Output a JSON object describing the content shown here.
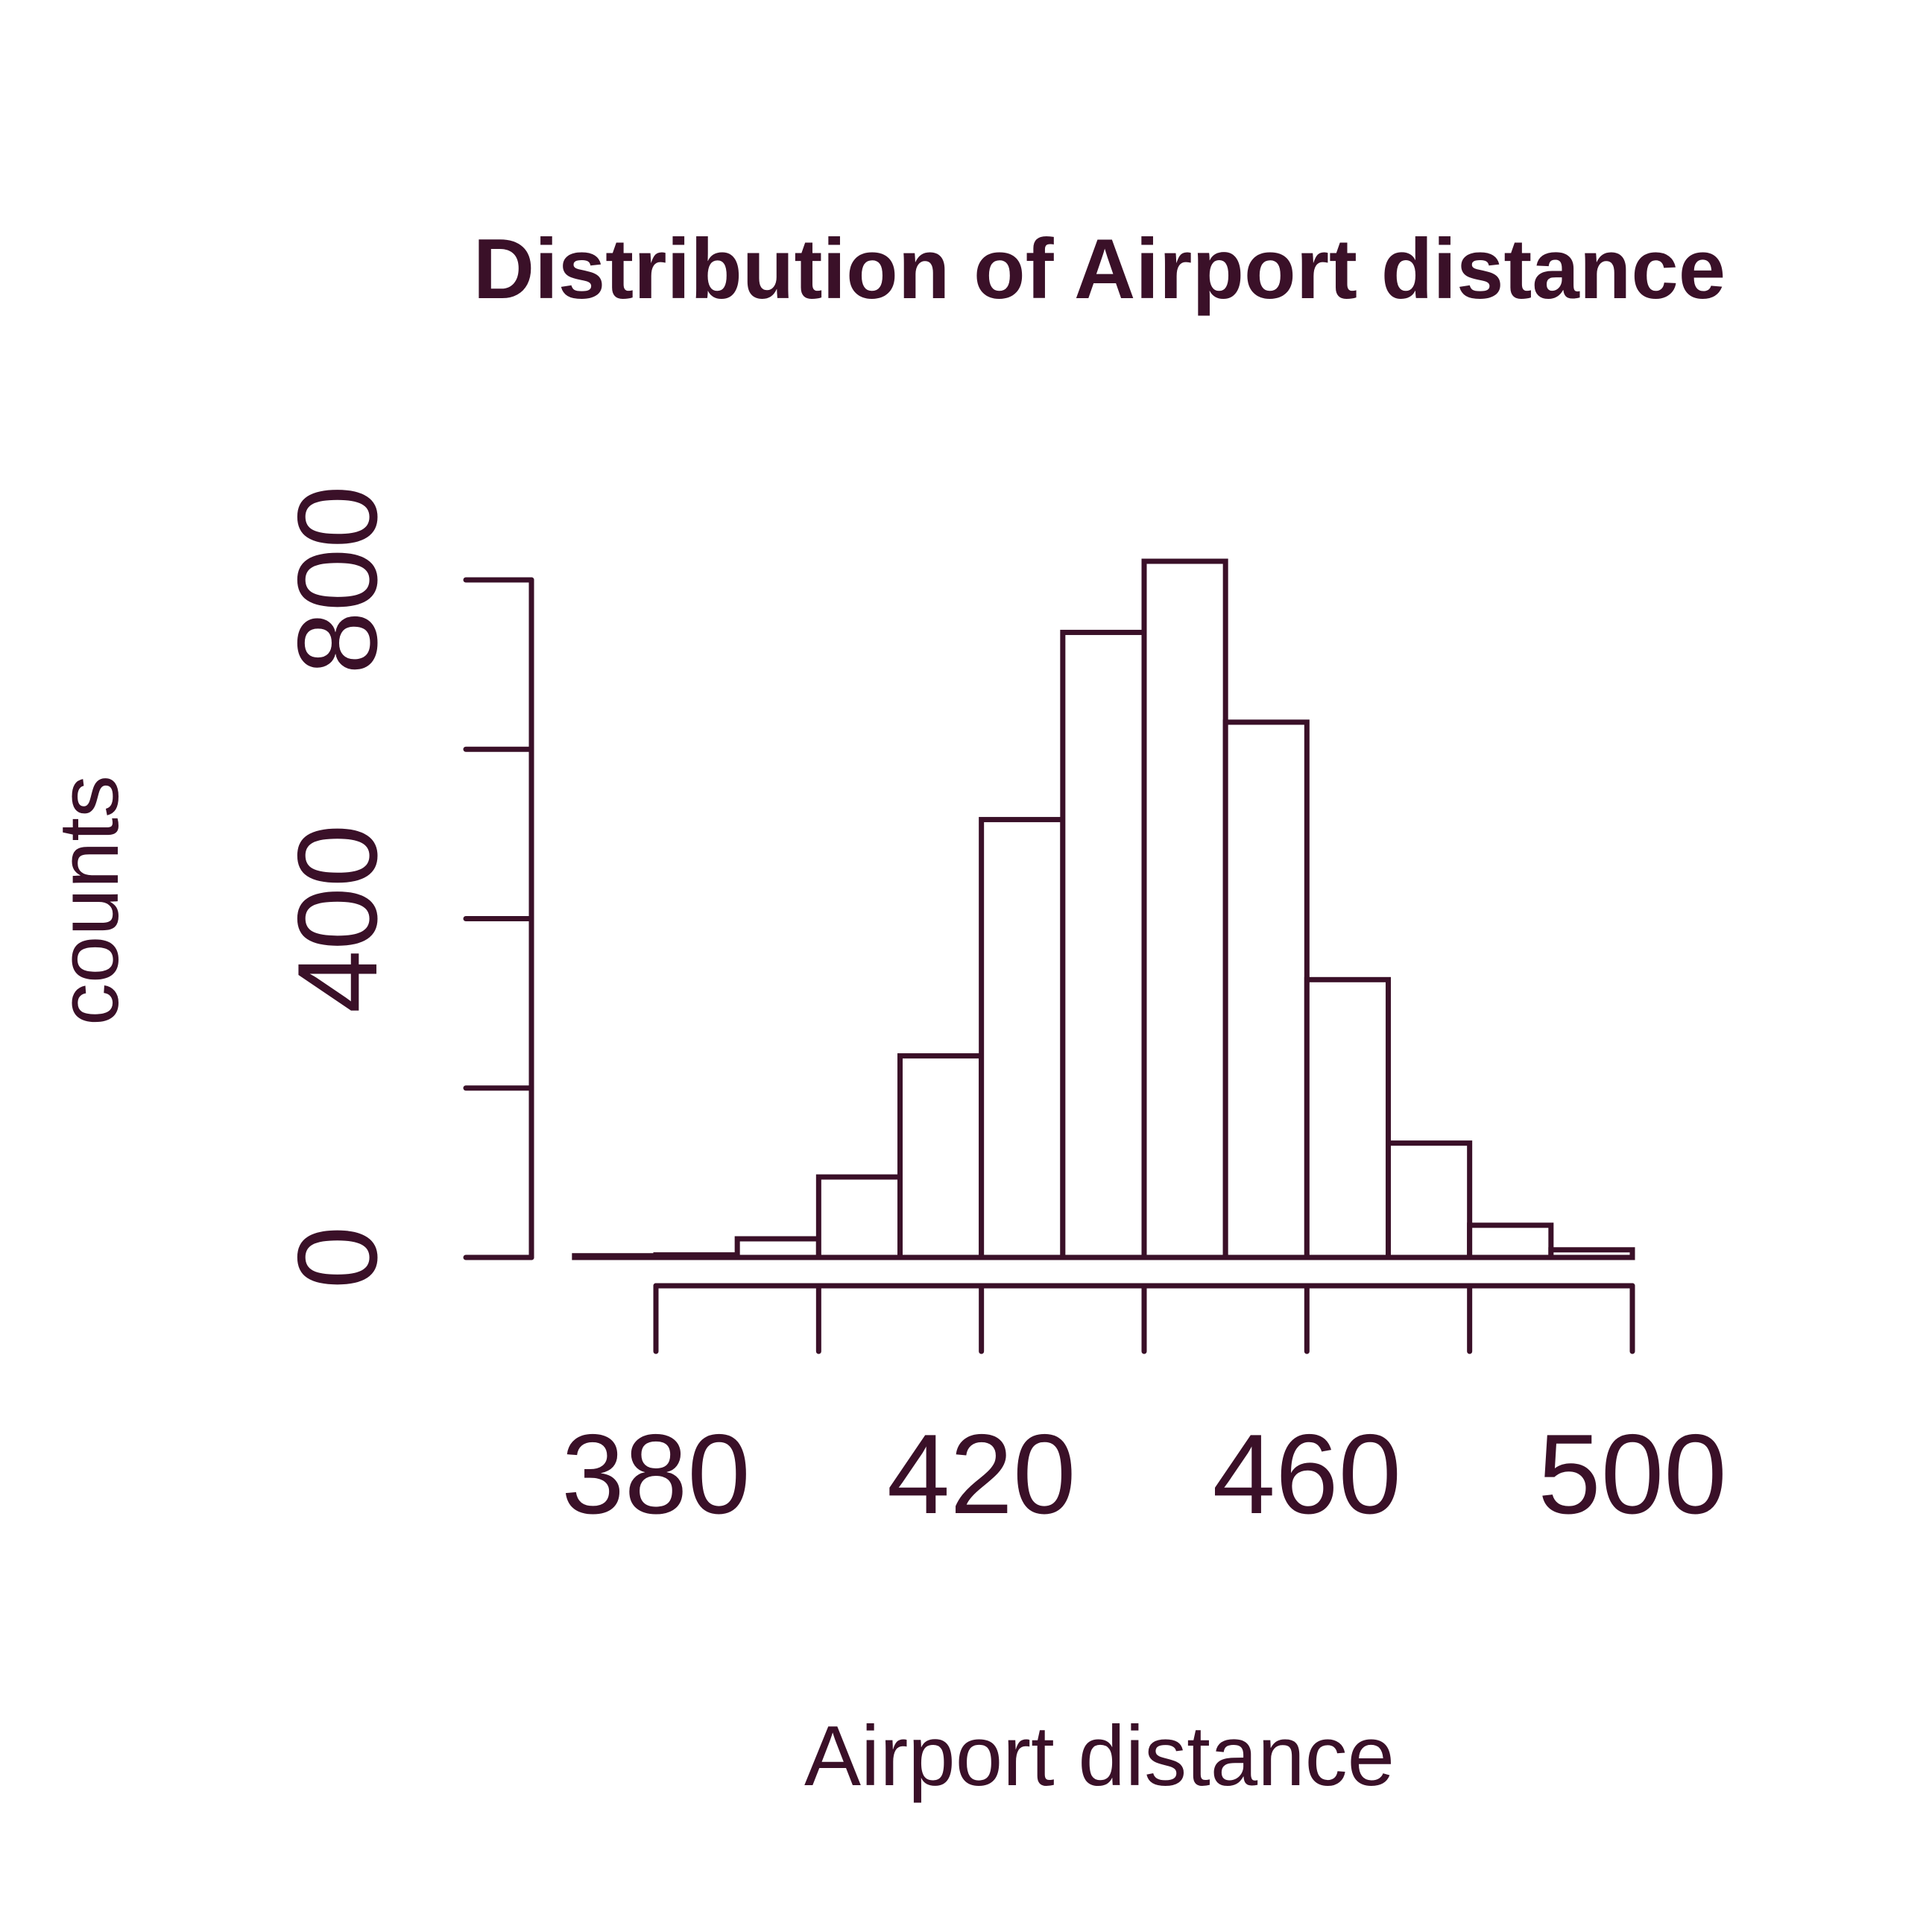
{
  "colors": {
    "ink": "#3a1028",
    "background": "#ffffff",
    "bar_fill": "#ffffff"
  },
  "chart_data": {
    "type": "bar",
    "subtype": "histogram",
    "title": "Distribution of Airport distance",
    "xlabel": "Airport distance",
    "ylabel": "counts",
    "xlim": [
      370,
      500
    ],
    "ylim": [
      0,
      800
    ],
    "x_ticks": [
      380,
      400,
      420,
      440,
      460,
      480,
      500
    ],
    "x_tick_labels": [
      "380",
      "",
      "420",
      "",
      "460",
      "",
      "500"
    ],
    "y_ticks": [
      0,
      200,
      400,
      600,
      800
    ],
    "y_tick_labels": [
      "0",
      "",
      "400",
      "",
      "800"
    ],
    "grid": false,
    "legend": "none",
    "bins": [
      {
        "start": 370,
        "end": 380,
        "count": 2
      },
      {
        "start": 380,
        "end": 390,
        "count": 3
      },
      {
        "start": 390,
        "end": 400,
        "count": 22
      },
      {
        "start": 400,
        "end": 410,
        "count": 95
      },
      {
        "start": 410,
        "end": 420,
        "count": 238
      },
      {
        "start": 420,
        "end": 430,
        "count": 517
      },
      {
        "start": 430,
        "end": 440,
        "count": 738
      },
      {
        "start": 440,
        "end": 450,
        "count": 822
      },
      {
        "start": 450,
        "end": 460,
        "count": 632
      },
      {
        "start": 460,
        "end": 470,
        "count": 328
      },
      {
        "start": 470,
        "end": 480,
        "count": 135
      },
      {
        "start": 480,
        "end": 490,
        "count": 38
      },
      {
        "start": 490,
        "end": 500,
        "count": 9
      }
    ]
  }
}
